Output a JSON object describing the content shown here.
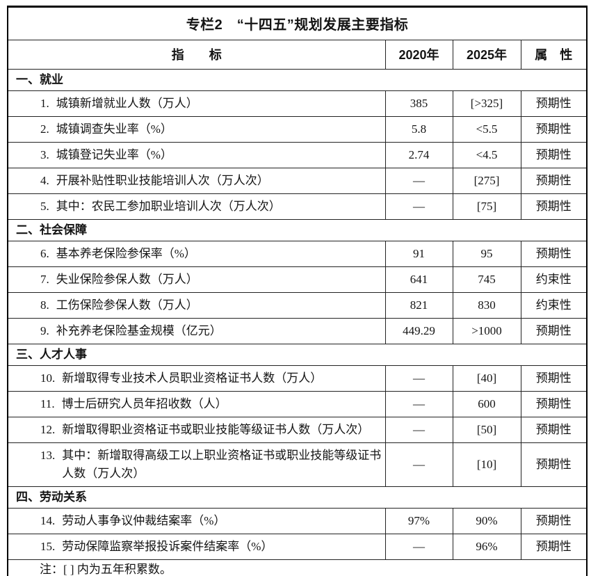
{
  "title": "专栏2　“十四五”规划发展主要指标",
  "header": {
    "indicator": "指　　标",
    "y2020": "2020年",
    "y2025": "2025年",
    "attribute": "属　性"
  },
  "sections": [
    {
      "heading": "一、就业",
      "rows": [
        {
          "num": "1.",
          "text": "城镇新增就业人数（万人）",
          "y2020": "385",
          "y2025": "[>325]",
          "attribute": "预期性"
        },
        {
          "num": "2.",
          "text": "城镇调查失业率（%）",
          "y2020": "5.8",
          "y2025": "<5.5",
          "attribute": "预期性"
        },
        {
          "num": "3.",
          "text": "城镇登记失业率（%）",
          "y2020": "2.74",
          "y2025": "<4.5",
          "attribute": "预期性"
        },
        {
          "num": "4.",
          "text": "开展补贴性职业技能培训人次（万人次）",
          "y2020": "—",
          "y2025": "[275]",
          "attribute": "预期性"
        },
        {
          "num": "5.",
          "text": "其中：农民工参加职业培训人次（万人次）",
          "y2020": "—",
          "y2025": "[75]",
          "attribute": "预期性"
        }
      ]
    },
    {
      "heading": "二、社会保障",
      "rows": [
        {
          "num": "6.",
          "text": "基本养老保险参保率（%）",
          "y2020": "91",
          "y2025": "95",
          "attribute": "预期性"
        },
        {
          "num": "7.",
          "text": "失业保险参保人数（万人）",
          "y2020": "641",
          "y2025": "745",
          "attribute": "约束性"
        },
        {
          "num": "8.",
          "text": "工伤保险参保人数（万人）",
          "y2020": "821",
          "y2025": "830",
          "attribute": "约束性"
        },
        {
          "num": "9.",
          "text": "补充养老保险基金规模（亿元）",
          "y2020": "449.29",
          "y2025": ">1000",
          "attribute": "预期性"
        }
      ]
    },
    {
      "heading": "三、人才人事",
      "rows": [
        {
          "num": "10.",
          "text": "新增取得专业技术人员职业资格证书人数（万人）",
          "y2020": "—",
          "y2025": "[40]",
          "attribute": "预期性"
        },
        {
          "num": "11.",
          "text": "博士后研究人员年招收数（人）",
          "y2020": "—",
          "y2025": "600",
          "attribute": "预期性"
        },
        {
          "num": "12.",
          "text": "新增取得职业资格证书或职业技能等级证书人数（万人次）",
          "y2020": "—",
          "y2025": "[50]",
          "attribute": "预期性"
        },
        {
          "num": "13.",
          "text": "其中：新增取得高级工以上职业资格证书或职业技能等级证书人数（万人次）",
          "y2020": "—",
          "y2025": "[10]",
          "attribute": "预期性"
        }
      ]
    },
    {
      "heading": "四、劳动关系",
      "rows": [
        {
          "num": "14.",
          "text": "劳动人事争议仲裁结案率（%）",
          "y2020": "97%",
          "y2025": "90%",
          "attribute": "预期性"
        },
        {
          "num": "15.",
          "text": "劳动保障监察举报投诉案件结案率（%）",
          "y2020": "—",
          "y2025": "96%",
          "attribute": "预期性"
        }
      ]
    }
  ],
  "note": "注：[ ] 内为五年积累数。"
}
